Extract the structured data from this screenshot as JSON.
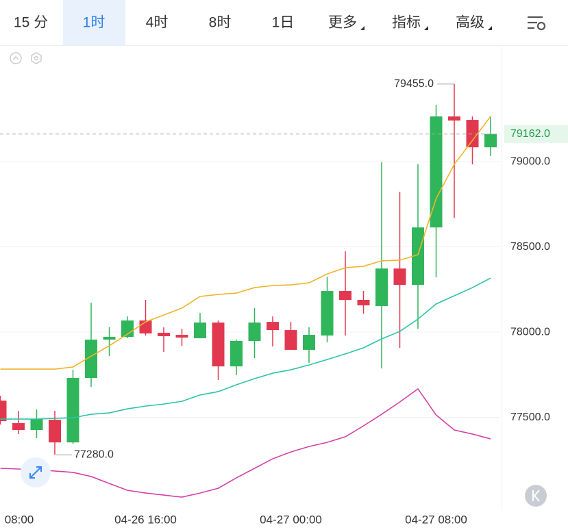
{
  "tabs": [
    "15 分",
    "1时",
    "4时",
    "8时",
    "1日",
    "更多",
    "指标",
    "高级"
  ],
  "active_tab": 1,
  "chart_data": {
    "type": "candlestick",
    "categories": [
      null,
      "08:00",
      null,
      null,
      null,
      null,
      null,
      null,
      "04-26 16:00",
      null,
      null,
      null,
      null,
      null,
      null,
      null,
      "04-27 00:00",
      null,
      null,
      null,
      null,
      null,
      null,
      null,
      "04-27 08:00",
      null,
      null,
      null
    ],
    "open": [
      77598,
      77466,
      77426,
      77486,
      77353,
      77731,
      77956,
      77972,
      78068,
      77996,
      77984,
      77964,
      78056,
      77799,
      77948,
      78060,
      78012,
      77896,
      77980,
      78241,
      78189,
      78153,
      78373,
      78277,
      78614,
      79265,
      79245,
      79084
    ],
    "high": [
      77627,
      77538,
      77546,
      77538,
      77779,
      78173,
      78028,
      78092,
      78189,
      78028,
      78020,
      78112,
      78068,
      77956,
      78141,
      78092,
      78060,
      78028,
      78325,
      78474,
      78241,
      78996,
      78823,
      78984,
      79333,
      79455,
      79265,
      79265
    ],
    "low": [
      77458,
      77402,
      77378,
      77280,
      77345,
      77679,
      77859,
      77964,
      77980,
      77884,
      77920,
      77964,
      77719,
      77747,
      77847,
      77916,
      77896,
      77819,
      77940,
      77980,
      78108,
      77787,
      77908,
      78020,
      78321,
      78671,
      78984,
      79032
    ],
    "close": [
      77478,
      77426,
      77490,
      77353,
      77731,
      77956,
      77972,
      78068,
      77992,
      77976,
      77968,
      78056,
      77799,
      77948,
      78056,
      78012,
      77896,
      77984,
      78241,
      78189,
      78157,
      78373,
      78277,
      78614,
      79265,
      79241,
      79084,
      79162
    ],
    "up_color": "#2fb55a",
    "down_color": "#e2384f",
    "lines": [
      {
        "color": "#f0b429",
        "values": [
          77783,
          77783,
          77783,
          77783,
          77795,
          77859,
          77920,
          77988,
          78060,
          78100,
          78141,
          78209,
          78221,
          78229,
          78261,
          78273,
          78277,
          78289,
          78341,
          78378,
          78386,
          78418,
          78422,
          78454,
          78783,
          78984,
          79124,
          79265
        ]
      },
      {
        "color": "#2cc4a4",
        "values": [
          77490,
          77490,
          77490,
          77494,
          77498,
          77518,
          77526,
          77550,
          77566,
          77578,
          77594,
          77631,
          77651,
          77691,
          77727,
          77759,
          77779,
          77807,
          77839,
          77872,
          77908,
          77960,
          78004,
          78076,
          78165,
          78213,
          78261,
          78317
        ]
      },
      {
        "color": "#d63fa8",
        "values": [
          77201,
          77197,
          77193,
          77185,
          77177,
          77153,
          77112,
          77072,
          77056,
          77044,
          77032,
          77056,
          77084,
          77145,
          77201,
          77257,
          77297,
          77329,
          77353,
          77386,
          77450,
          77518,
          77590,
          77667,
          77514,
          77426,
          77402,
          77374
        ]
      }
    ],
    "ylim": [
      76956,
      79683
    ],
    "yticks": [
      {
        "value": 77500,
        "label": "77500.0"
      },
      {
        "value": 78000,
        "label": "78000.0"
      },
      {
        "value": 78500,
        "label": "78500.0"
      },
      {
        "value": 79000,
        "label": "79000.0"
      }
    ],
    "grid": true,
    "high_label": {
      "value": 79455,
      "label": "79455.0"
    },
    "low_label": {
      "value": 77280,
      "label": "77280.0"
    },
    "last_price": {
      "value": 79162,
      "label": "79162.0"
    }
  }
}
